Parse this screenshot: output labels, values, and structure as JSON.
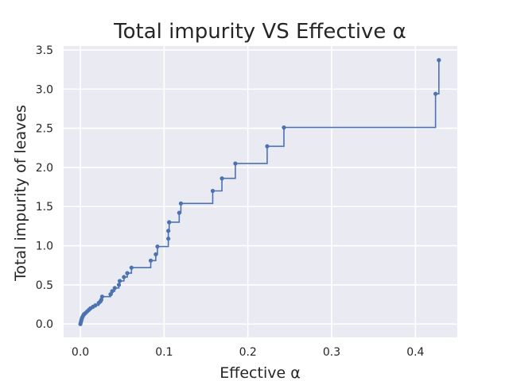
{
  "chart_data": {
    "type": "line",
    "step": "post",
    "title": "Total impurity VS Effective α",
    "xlabel": "Effective α",
    "ylabel": "Total impurity of leaves",
    "xlim": [
      -0.02,
      0.45
    ],
    "ylim": [
      -0.17,
      3.55
    ],
    "xticks": [
      0.0,
      0.1,
      0.2,
      0.3,
      0.4
    ],
    "xtick_labels": [
      "0.0",
      "0.1",
      "0.2",
      "0.3",
      "0.4"
    ],
    "yticks": [
      0.0,
      0.5,
      1.0,
      1.5,
      2.0,
      2.5,
      3.0,
      3.5
    ],
    "ytick_labels": [
      "0.0",
      "0.5",
      "1.0",
      "1.5",
      "2.0",
      "2.5",
      "3.0",
      "3.5"
    ],
    "grid": true,
    "background": "#eaeaf2",
    "grid_color": "#ffffff",
    "series_color": "#4c72b0",
    "x": [
      0.0,
      0.0005,
      0.001,
      0.0015,
      0.002,
      0.003,
      0.004,
      0.005,
      0.006,
      0.008,
      0.01,
      0.012,
      0.015,
      0.018,
      0.022,
      0.024,
      0.025,
      0.026,
      0.036,
      0.038,
      0.041,
      0.046,
      0.047,
      0.052,
      0.056,
      0.061,
      0.084,
      0.09,
      0.092,
      0.105,
      0.105,
      0.106,
      0.106,
      0.118,
      0.12,
      0.158,
      0.169,
      0.185,
      0.223,
      0.243,
      0.424,
      0.428
    ],
    "y": [
      0.0,
      0.02,
      0.04,
      0.06,
      0.08,
      0.1,
      0.12,
      0.13,
      0.14,
      0.16,
      0.18,
      0.2,
      0.22,
      0.24,
      0.27,
      0.29,
      0.31,
      0.35,
      0.38,
      0.42,
      0.46,
      0.5,
      0.55,
      0.6,
      0.65,
      0.72,
      0.81,
      0.89,
      0.99,
      1.09,
      1.19,
      1.3,
      1.3,
      1.42,
      1.54,
      1.7,
      1.86,
      2.05,
      2.27,
      2.51,
      2.94,
      3.37
    ]
  }
}
